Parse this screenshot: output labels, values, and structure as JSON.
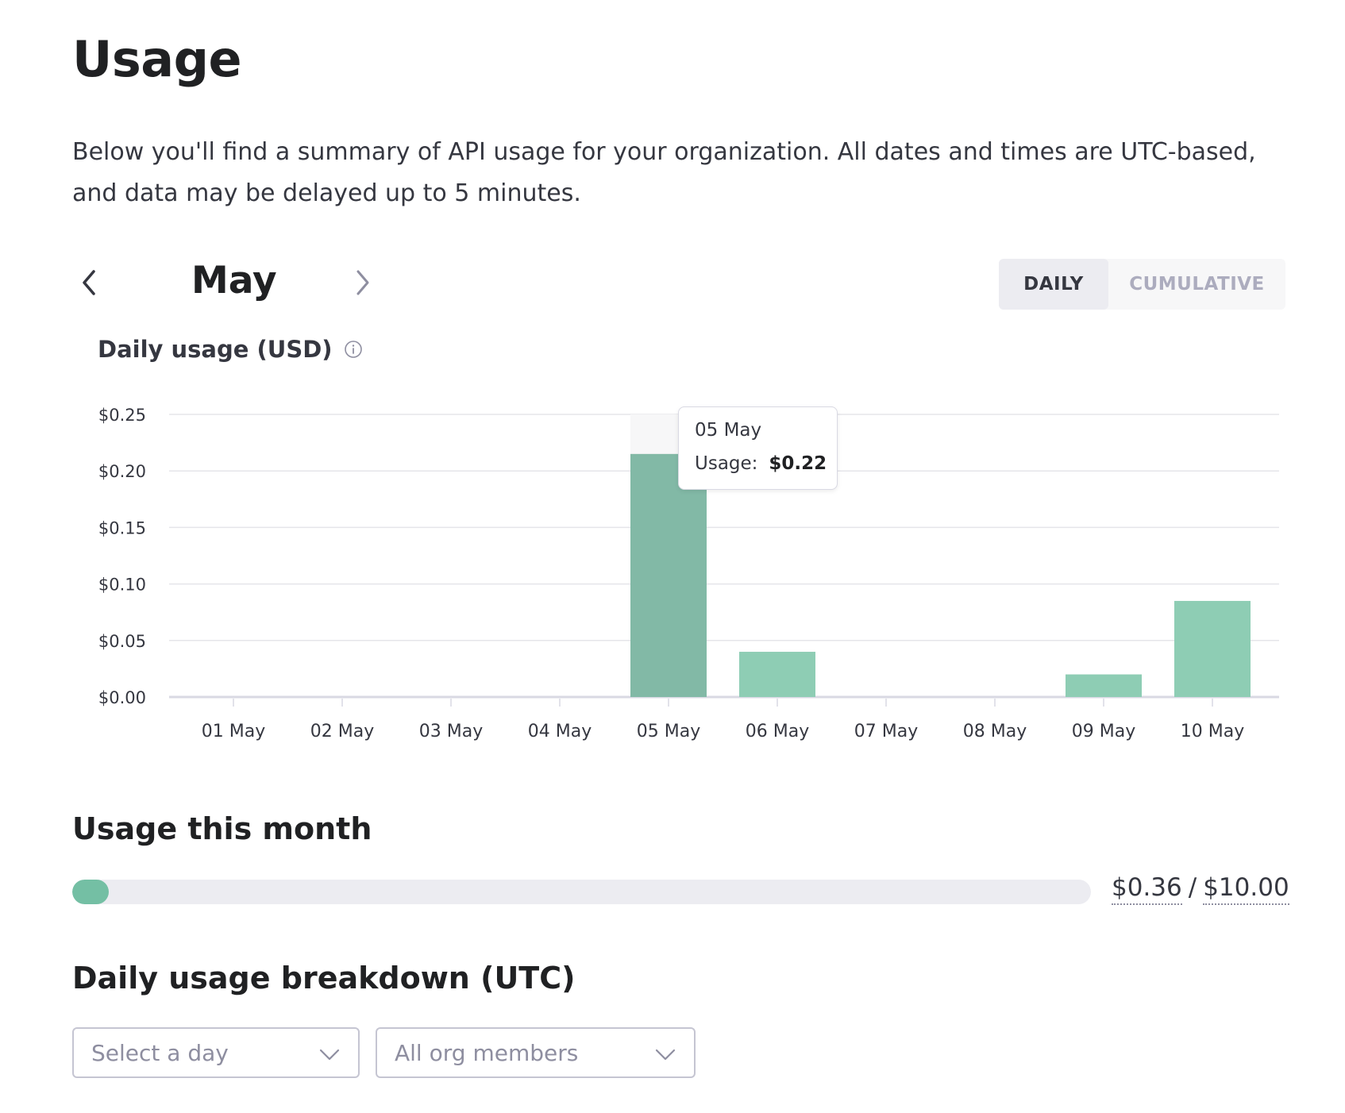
{
  "page": {
    "title": "Usage",
    "intro": "Below you'll find a summary of API usage for your organization. All dates and times are UTC-based, and data may be delayed up to 5 minutes."
  },
  "month_nav": {
    "month": "May",
    "prev_icon": "chevron-left-icon",
    "next_icon": "chevron-right-icon"
  },
  "view_toggle": {
    "daily": "DAILY",
    "cumulative": "CUMULATIVE",
    "selected": "DAILY"
  },
  "chart_title": "Daily usage (USD)",
  "chart_data": {
    "type": "bar",
    "title": "Daily usage (USD)",
    "categories": [
      "01 May",
      "02 May",
      "03 May",
      "04 May",
      "05 May",
      "06 May",
      "07 May",
      "08 May",
      "09 May",
      "10 May"
    ],
    "values": [
      0,
      0,
      0,
      0,
      0.215,
      0.04,
      0,
      0,
      0.02,
      0.085
    ],
    "ylim": [
      0,
      0.25
    ],
    "yticks": [
      "$0.00",
      "$0.05",
      "$0.10",
      "$0.15",
      "$0.20",
      "$0.25"
    ],
    "ytick_values": [
      0,
      0.05,
      0.1,
      0.15,
      0.2,
      0.25
    ],
    "grid": true,
    "highlighted_index": 4,
    "colors": {
      "bar": "#8ecdb4",
      "bar_highlight": "#82b9a6",
      "grid": "#e5e5ea",
      "axis": "#d9d9e3"
    }
  },
  "tooltip": {
    "date": "05 May",
    "label": "Usage:",
    "value": "$0.22"
  },
  "usage_month": {
    "title": "Usage this month",
    "used": "$0.36",
    "separator": "/",
    "limit": "$10.00",
    "fraction": 0.036,
    "color": "#74bfa4"
  },
  "breakdown": {
    "title": "Daily usage breakdown (UTC)",
    "day_placeholder": "Select a day",
    "members_value": "All org members"
  }
}
